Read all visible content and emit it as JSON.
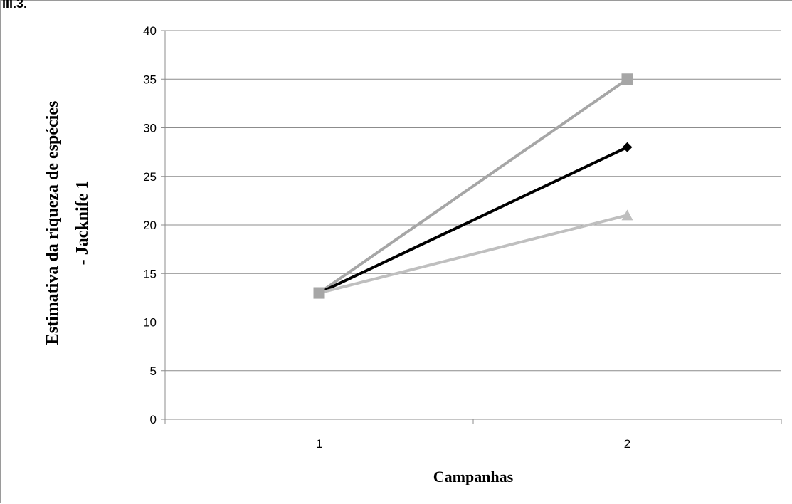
{
  "corner_label": "III.3.",
  "chart_data": {
    "type": "line",
    "categories": [
      "1",
      "2"
    ],
    "x": [
      1,
      2
    ],
    "xlabel": "Campanhas",
    "ylabel_line1": "Estimativa  da  riqueza  de  espécies",
    "ylabel_line2": "- Jacknife 1",
    "ylim": [
      0,
      40
    ],
    "ytick_step": 5,
    "grid": true,
    "series": [
      {
        "values": [
          13,
          35
        ],
        "color": "#a6a6a6",
        "marker": "square"
      },
      {
        "values": [
          13,
          28
        ],
        "color": "#000000",
        "marker": "diamond"
      },
      {
        "values": [
          13,
          21
        ],
        "color": "#bfbfbf",
        "marker": "triangle"
      }
    ]
  }
}
